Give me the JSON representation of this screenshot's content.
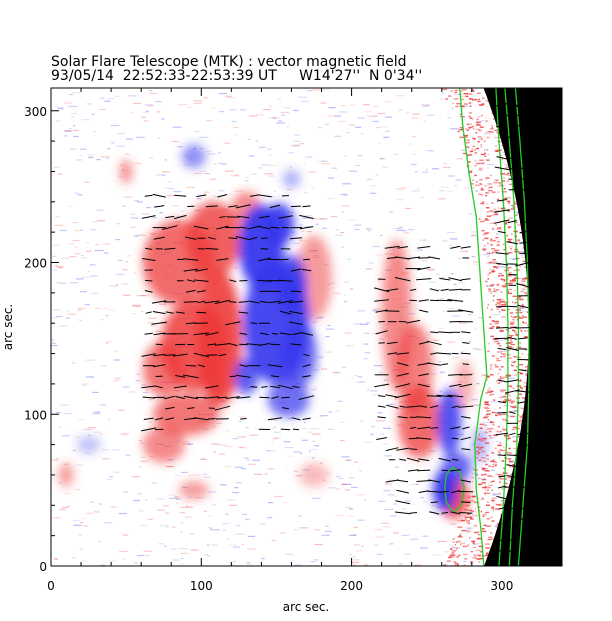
{
  "chart_data": {
    "type": "heatmap",
    "title": "Solar Flare Telescope (MTK) : vector magnetic field",
    "subtitle": "93/05/14  22:52:33-22:53:39 UT     W14'27''  N 0'34''",
    "xlabel": "arc sec.",
    "ylabel": "arc sec.",
    "xlim": [
      0,
      340
    ],
    "ylim": [
      0,
      315
    ],
    "x_ticks": [
      0,
      100,
      200,
      300
    ],
    "y_ticks": [
      0,
      100,
      200,
      300
    ],
    "x_tick_labels": [
      "0",
      "100",
      "200",
      "300"
    ],
    "y_tick_labels": [
      "0",
      "100",
      "200",
      "300"
    ],
    "colors": {
      "positive_polarity": "#ee3a3a",
      "negative_polarity": "#3535ee",
      "contour": "#22cc22",
      "vectors": "#000000",
      "off_disk": "#000000"
    },
    "limb_x_at_center": 318,
    "positive_regions": [
      {
        "x": 50,
        "y": 260,
        "rx": 4,
        "ry": 8,
        "s": 0.6
      },
      {
        "x": 85,
        "y": 200,
        "rx": 24,
        "ry": 28,
        "s": 0.75
      },
      {
        "x": 108,
        "y": 215,
        "rx": 18,
        "ry": 25,
        "s": 0.8
      },
      {
        "x": 112,
        "y": 150,
        "rx": 15,
        "ry": 45,
        "s": 0.9
      },
      {
        "x": 95,
        "y": 145,
        "rx": 22,
        "ry": 30,
        "s": 0.85
      },
      {
        "x": 108,
        "y": 125,
        "rx": 8,
        "ry": 12,
        "s": 1.0
      },
      {
        "x": 75,
        "y": 130,
        "rx": 14,
        "ry": 18,
        "s": 0.7
      },
      {
        "x": 90,
        "y": 100,
        "rx": 22,
        "ry": 14,
        "s": 0.7
      },
      {
        "x": 75,
        "y": 80,
        "rx": 14,
        "ry": 12,
        "s": 0.6
      },
      {
        "x": 130,
        "y": 235,
        "rx": 10,
        "ry": 12,
        "s": 0.6
      },
      {
        "x": 175,
        "y": 190,
        "rx": 12,
        "ry": 28,
        "s": 0.5
      },
      {
        "x": 230,
        "y": 165,
        "rx": 10,
        "ry": 50,
        "s": 0.6
      },
      {
        "x": 242,
        "y": 130,
        "rx": 12,
        "ry": 30,
        "s": 0.65
      },
      {
        "x": 245,
        "y": 95,
        "rx": 14,
        "ry": 24,
        "s": 0.75
      },
      {
        "x": 268,
        "y": 45,
        "rx": 10,
        "ry": 14,
        "s": 0.9
      },
      {
        "x": 275,
        "y": 120,
        "rx": 6,
        "ry": 16,
        "s": 0.4
      },
      {
        "x": 95,
        "y": 50,
        "rx": 10,
        "ry": 6,
        "s": 0.5
      },
      {
        "x": 10,
        "y": 60,
        "rx": 5,
        "ry": 8,
        "s": 0.5
      },
      {
        "x": 175,
        "y": 60,
        "rx": 10,
        "ry": 8,
        "s": 0.35
      }
    ],
    "negative_regions": [
      {
        "x": 140,
        "y": 210,
        "rx": 15,
        "ry": 28,
        "s": 0.95
      },
      {
        "x": 152,
        "y": 225,
        "rx": 10,
        "ry": 14,
        "s": 0.9
      },
      {
        "x": 150,
        "y": 160,
        "rx": 22,
        "ry": 40,
        "s": 0.9
      },
      {
        "x": 160,
        "y": 185,
        "rx": 10,
        "ry": 20,
        "s": 0.85
      },
      {
        "x": 165,
        "y": 140,
        "rx": 12,
        "ry": 22,
        "s": 0.75
      },
      {
        "x": 130,
        "y": 125,
        "rx": 8,
        "ry": 12,
        "s": 0.8
      },
      {
        "x": 158,
        "y": 110,
        "rx": 14,
        "ry": 12,
        "s": 0.7
      },
      {
        "x": 95,
        "y": 270,
        "rx": 8,
        "ry": 8,
        "s": 0.55
      },
      {
        "x": 160,
        "y": 255,
        "rx": 6,
        "ry": 6,
        "s": 0.4
      },
      {
        "x": 265,
        "y": 95,
        "rx": 8,
        "ry": 22,
        "s": 0.85
      },
      {
        "x": 262,
        "y": 50,
        "rx": 8,
        "ry": 14,
        "s": 0.95
      },
      {
        "x": 270,
        "y": 65,
        "rx": 10,
        "ry": 10,
        "s": 0.75
      },
      {
        "x": 285,
        "y": 80,
        "rx": 5,
        "ry": 12,
        "s": 0.4
      },
      {
        "x": 25,
        "y": 80,
        "rx": 8,
        "ry": 6,
        "s": 0.3
      }
    ],
    "contours": [
      {
        "name": "",
        "points": [
          [
            272,
            315
          ],
          [
            274,
            290
          ],
          [
            278,
            260
          ],
          [
            283,
            230
          ],
          [
            285,
            200
          ],
          [
            287,
            170
          ],
          [
            289,
            140
          ],
          [
            290,
            125
          ],
          [
            286,
            110
          ],
          [
            284,
            95
          ],
          [
            282,
            80
          ],
          [
            283,
            50
          ],
          [
            286,
            25
          ],
          [
            288,
            0
          ]
        ]
      },
      {
        "name": "",
        "points": [
          [
            296,
            315
          ],
          [
            298,
            280
          ],
          [
            301,
            240
          ],
          [
            303,
            200
          ],
          [
            304,
            160
          ],
          [
            304,
            120
          ],
          [
            303,
            80
          ],
          [
            301,
            40
          ],
          [
            298,
            0
          ]
        ]
      },
      {
        "name": "",
        "points": [
          [
            302,
            315
          ],
          [
            305,
            280
          ],
          [
            308,
            240
          ],
          [
            310,
            200
          ],
          [
            311,
            160
          ],
          [
            311,
            120
          ],
          [
            310,
            80
          ],
          [
            307,
            40
          ],
          [
            305,
            0
          ]
        ]
      },
      {
        "name": "",
        "points": [
          [
            309,
            315
          ],
          [
            312,
            280
          ],
          [
            315,
            240
          ],
          [
            317,
            200
          ],
          [
            318,
            160
          ],
          [
            318,
            120
          ],
          [
            317,
            80
          ],
          [
            314,
            40
          ],
          [
            311,
            0
          ]
        ]
      },
      {
        "name": "",
        "points": [
          [
            263,
            60
          ],
          [
            267,
            65
          ],
          [
            272,
            62
          ],
          [
            275,
            52
          ],
          [
            273,
            40
          ],
          [
            268,
            35
          ],
          [
            263,
            42
          ],
          [
            262,
            52
          ],
          [
            263,
            60
          ]
        ]
      }
    ],
    "vector_regions": [
      {
        "x0": 65,
        "x1": 175,
        "y0": 90,
        "y1": 250
      },
      {
        "x0": 220,
        "x1": 280,
        "y0": 35,
        "y1": 210
      },
      {
        "x0": 300,
        "x1": 320,
        "y0": 10,
        "y1": 315
      }
    ]
  }
}
